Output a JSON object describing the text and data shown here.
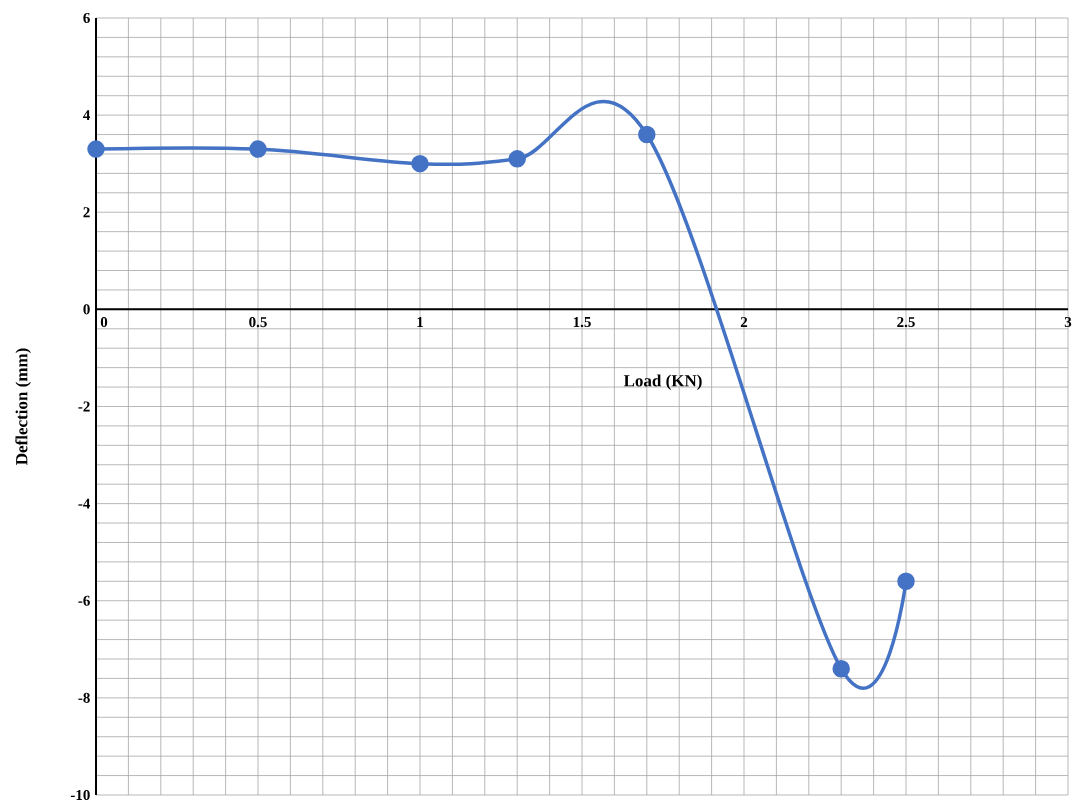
{
  "chart_data": {
    "type": "line",
    "xlabel": "Load (KN)",
    "ylabel": "Deflection (mm)",
    "x": [
      0,
      0.5,
      1,
      1.3,
      1.7,
      2.3,
      2.5
    ],
    "series": [
      {
        "color": "#4472c4",
        "values": [
          3.3,
          3.3,
          3.0,
          3.1,
          3.6,
          -7.4,
          -5.6
        ]
      }
    ],
    "xlim": [
      0,
      3
    ],
    "ylim": [
      -10,
      6
    ],
    "xticks": [
      0,
      0.5,
      1,
      1.5,
      2,
      2.5,
      3
    ],
    "yticks": [
      -10,
      -8,
      -6,
      -4,
      -2,
      0,
      2,
      4,
      6
    ],
    "grid": true,
    "marker": "circle",
    "line_style": "solid"
  }
}
